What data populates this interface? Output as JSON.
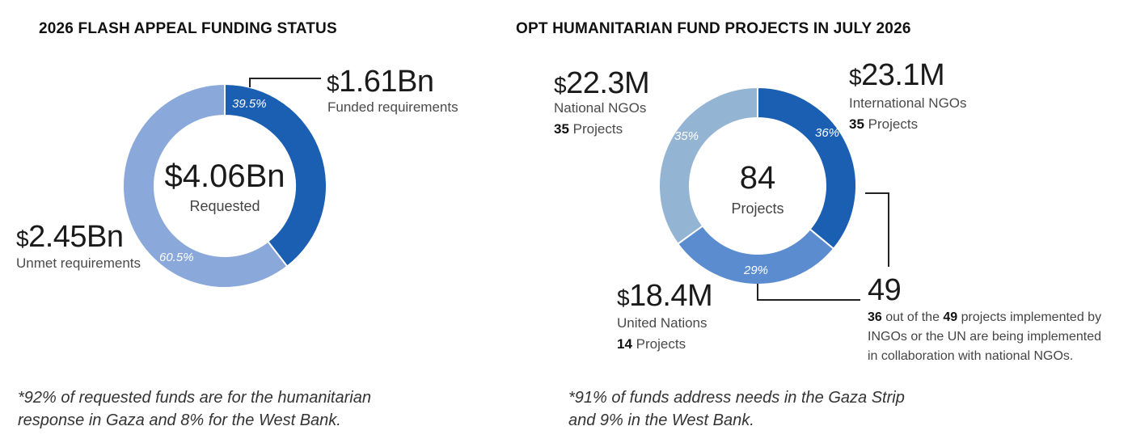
{
  "left": {
    "title": "2026 FLASH APPEAL FUNDING STATUS",
    "center_value": "$4.06Bn",
    "center_label": "Requested",
    "funded": {
      "currency": "$",
      "amount": "1.61Bn",
      "label": "Funded requirements",
      "pct": "39.5%"
    },
    "unmet": {
      "currency": "$",
      "amount": "2.45Bn",
      "label": "Unmet requirements",
      "pct": "60.5%"
    },
    "footnote_line1": "*92% of requested funds are for the humanitarian",
    "footnote_line2": "response in Gaza and 8% for the West Bank."
  },
  "right": {
    "title": "OPT HUMANITARIAN FUND PROJECTS IN JULY 2026",
    "center_value": "84",
    "center_label": "Projects",
    "national": {
      "currency": "$",
      "amount": "22.3M",
      "label": "National NGOs",
      "count": "35",
      "count_label": "Projects",
      "pct": "35%"
    },
    "international": {
      "currency": "$",
      "amount": "23.1M",
      "label": "International NGOs",
      "count": "35",
      "count_label": "Projects",
      "pct": "36%"
    },
    "un": {
      "currency": "$",
      "amount": "18.4M",
      "label": "United Nations",
      "count": "14",
      "count_label": "Projects",
      "pct": "29%"
    },
    "collab": {
      "value": "49",
      "n1": "36",
      "t1": " out of the ",
      "n2": "49",
      "t2": " projects implemented by",
      "line2": "INGOs or the UN are being implemented",
      "line3": "in collaboration with national NGOs."
    },
    "footnote_line1": "*91% of funds address needs in the Gaza Strip",
    "footnote_line2": "and 9% in the West Bank."
  },
  "chart_data": [
    {
      "type": "pie",
      "title": "2026 FLASH APPEAL FUNDING STATUS",
      "categories": [
        "Funded requirements",
        "Unmet requirements"
      ],
      "values": [
        1.61,
        2.45
      ],
      "percentages": [
        39.5,
        60.5
      ],
      "unit": "$Bn",
      "total": 4.06,
      "colors": [
        "#1b5fb3",
        "#8aa9da"
      ]
    },
    {
      "type": "pie",
      "title": "OPT HUMANITARIAN FUND PROJECTS IN JULY 2026",
      "categories": [
        "International NGOs",
        "United Nations",
        "National NGOs"
      ],
      "values": [
        36,
        29,
        35
      ],
      "amounts_musd": [
        23.1,
        18.4,
        22.3
      ],
      "projects": [
        35,
        14,
        35
      ],
      "total_projects": 84,
      "colors": [
        "#1b5fb3",
        "#5b8ccf",
        "#94b4d4"
      ]
    }
  ]
}
